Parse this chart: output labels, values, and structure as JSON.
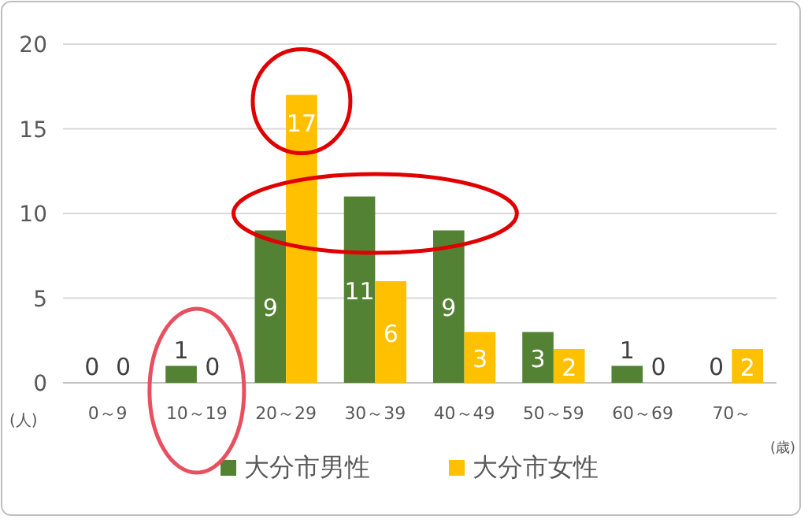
{
  "chart_data": {
    "type": "bar",
    "xlabel": "(歳)",
    "ylabel": "(人)",
    "categories": [
      "0～9",
      "10～19",
      "20～29",
      "30～39",
      "40～49",
      "50～59",
      "60～69",
      "70～"
    ],
    "series": [
      {
        "name": "大分市男性",
        "color": "#548235",
        "values": [
          0,
          1,
          9,
          11,
          9,
          3,
          1,
          0
        ]
      },
      {
        "name": "大分市女性",
        "color": "#ffc000",
        "values": [
          0,
          0,
          17,
          6,
          3,
          2,
          0,
          2
        ]
      }
    ],
    "ylim": [
      0,
      20
    ],
    "yticks": [
      0,
      5,
      10,
      15,
      20
    ],
    "grid": "y",
    "legend": "bottom",
    "data_labels": true
  }
}
